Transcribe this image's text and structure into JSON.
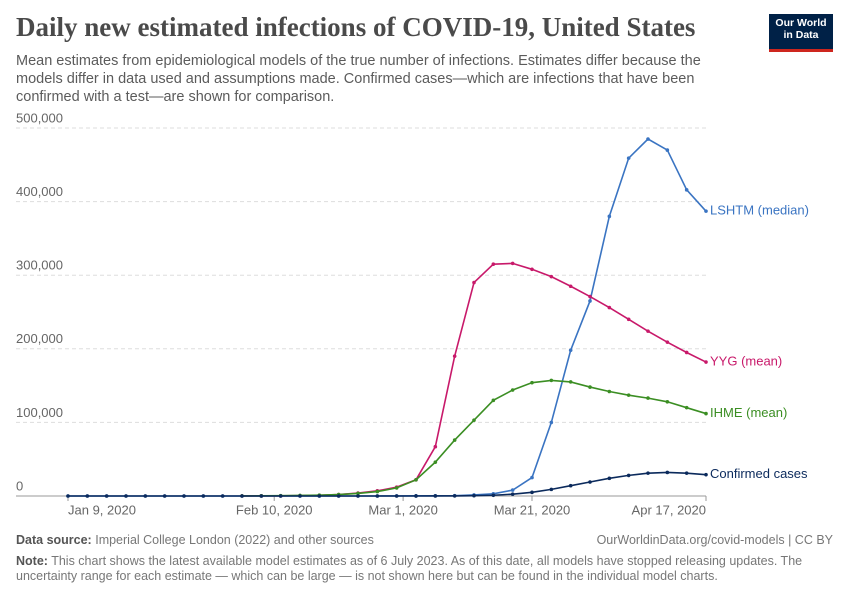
{
  "chart_data": {
    "type": "line",
    "title": "Daily new estimated infections of COVID-19, United States",
    "subtitle": "Mean estimates from epidemiological models of the true number of infections. Estimates differ because the models differ in data used and assumptions made. Confirmed cases—which are infections that have been confirmed with a test—are shown for comparison.",
    "logo": [
      "Our World",
      "in Data"
    ],
    "source_label": "Data source:",
    "source": "Imperial College London (2022) and other sources",
    "url": "OurWorldinData.org/covid-models | CC BY",
    "note_label": "Note:",
    "note": "This chart shows the latest available model estimates as of 6 July 2023. As of this date, all models have stopped releasing updates. The uncertainty range for each estimate — which can be large — is not shown here but can be found in the individual model charts.",
    "x": [
      "2020-01-09",
      "2020-01-12",
      "2020-01-15",
      "2020-01-18",
      "2020-01-21",
      "2020-01-24",
      "2020-01-27",
      "2020-01-30",
      "2020-02-02",
      "2020-02-05",
      "2020-02-08",
      "2020-02-11",
      "2020-02-14",
      "2020-02-17",
      "2020-02-20",
      "2020-02-23",
      "2020-02-26",
      "2020-02-29",
      "2020-03-03",
      "2020-03-06",
      "2020-03-09",
      "2020-03-12",
      "2020-03-15",
      "2020-03-18",
      "2020-03-21",
      "2020-03-24",
      "2020-03-27",
      "2020-03-30",
      "2020-04-02",
      "2020-04-05",
      "2020-04-08",
      "2020-04-11",
      "2020-04-14",
      "2020-04-17"
    ],
    "xlim": [
      "2020-01-09",
      "2020-04-17"
    ],
    "xticks": [
      {
        "value": "2020-01-09",
        "label": "Jan 9, 2020"
      },
      {
        "value": "2020-02-10",
        "label": "Feb 10, 2020"
      },
      {
        "value": "2020-03-01",
        "label": "Mar 1, 2020"
      },
      {
        "value": "2020-03-21",
        "label": "Mar 21, 2020"
      },
      {
        "value": "2020-04-17",
        "label": "Apr 17, 2020"
      }
    ],
    "ylim": [
      0,
      500000
    ],
    "yticks": [
      0,
      {
        "value": 100000,
        "label": "100,000"
      },
      {
        "value": 200000,
        "label": "200,000"
      },
      {
        "value": 300000,
        "label": "300,000"
      },
      {
        "value": 400000,
        "label": "400,000"
      },
      {
        "value": 500000,
        "label": "500,000"
      }
    ],
    "grid": true,
    "series": [
      {
        "name": "LSHTM (median)",
        "color": "#3a74c2",
        "values": [
          0,
          0,
          0,
          0,
          0,
          0,
          0,
          0,
          0,
          0,
          0,
          0,
          0,
          0,
          0,
          0,
          0,
          100,
          200,
          300,
          500,
          1500,
          3000,
          8000,
          25000,
          100000,
          198000,
          265000,
          380000,
          459000,
          485000,
          470000,
          416000,
          387000
        ]
      },
      {
        "name": "YYG (mean)",
        "color": "#c8196a",
        "values": [
          null,
          null,
          null,
          null,
          null,
          null,
          null,
          null,
          null,
          100,
          200,
          200,
          500,
          1000,
          2000,
          4000,
          7000,
          12000,
          22000,
          67000,
          190000,
          290000,
          315000,
          316000,
          308000,
          298000,
          285000,
          271000,
          256000,
          240000,
          224000,
          209000,
          195000,
          182000
        ]
      },
      {
        "name": "IHME (mean)",
        "color": "#3b8e23",
        "values": [
          null,
          null,
          null,
          null,
          null,
          null,
          null,
          null,
          null,
          100,
          200,
          400,
          700,
          1200,
          2000,
          3500,
          6000,
          11000,
          22000,
          46000,
          76000,
          103000,
          130000,
          144000,
          154000,
          157000,
          155000,
          148000,
          142000,
          137000,
          133000,
          128000,
          120000,
          112000
        ]
      },
      {
        "name": "Confirmed cases",
        "color": "#0b2a5c",
        "values": [
          0,
          0,
          0,
          0,
          0,
          0,
          0,
          0,
          0,
          0,
          0,
          0,
          0,
          0,
          0,
          0,
          0,
          0,
          20,
          50,
          100,
          400,
          1000,
          2500,
          5000,
          9000,
          14000,
          19000,
          24000,
          28000,
          31000,
          32000,
          31000,
          29000
        ]
      }
    ]
  }
}
